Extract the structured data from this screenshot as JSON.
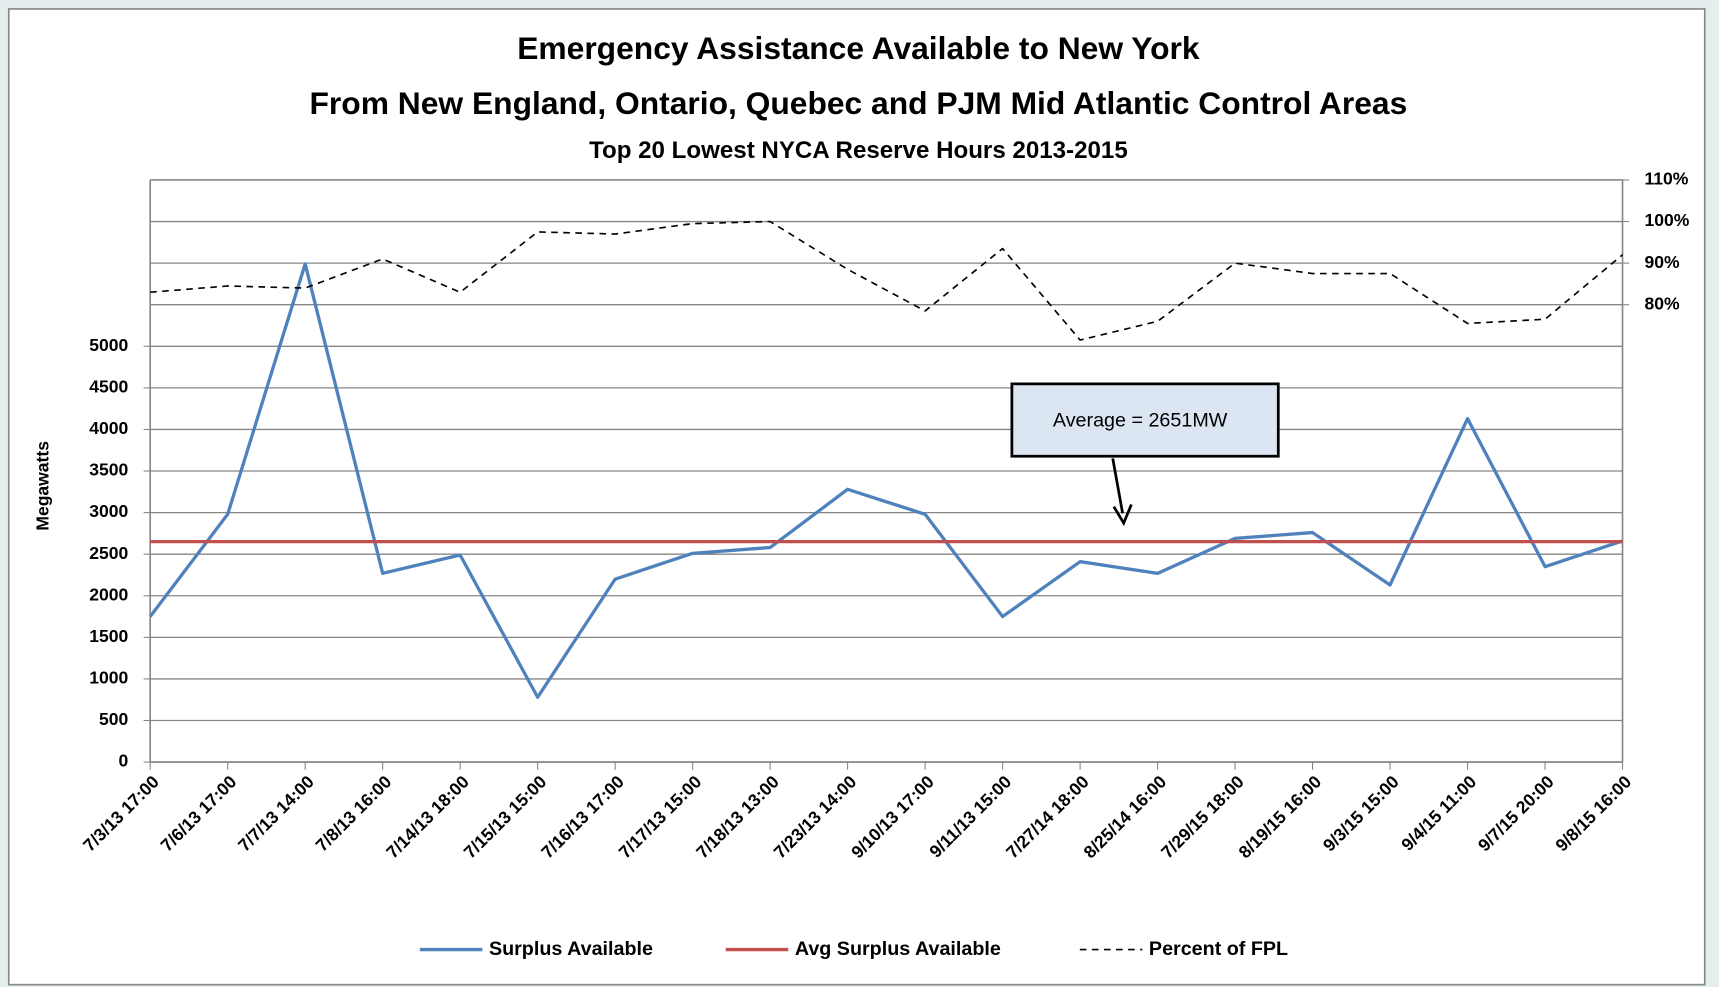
{
  "chart_data": {
    "type": "line",
    "title": [
      "Emergency Assistance Available to New York",
      "From New England, Ontario, Quebec and PJM Mid Atlantic Control Areas"
    ],
    "subtitle": "Top 20 Lowest NYCA Reserve Hours 2013-2015",
    "y_label": "Megawatts",
    "categories": [
      "7/3/13 17:00",
      "7/6/13 17:00",
      "7/7/13 14:00",
      "7/8/13 16:00",
      "7/14/13 18:00",
      "7/15/13 15:00",
      "7/16/13 17:00",
      "7/17/13 15:00",
      "7/18/13 13:00",
      "7/23/13 14:00",
      "9/10/13 17:00",
      "9/11/13 15:00",
      "7/27/14 18:00",
      "8/25/14 16:00",
      "7/29/15 18:00",
      "8/19/15 16:00",
      "9/3/15 15:00",
      "9/4/15 11:00",
      "9/7/15 20:00",
      "9/8/15 16:00"
    ],
    "series": [
      {
        "name": "Surplus Available",
        "color": "#4f81bd",
        "line_style": "solid",
        "values": [
          1750,
          2980,
          5990,
          2270,
          2490,
          780,
          2200,
          2510,
          2580,
          3280,
          2980,
          1750,
          2410,
          2270,
          2690,
          2760,
          2130,
          4130,
          2350,
          2660
        ]
      },
      {
        "name": "Avg Surplus Available",
        "color": "#c0504d",
        "line_style": "solid",
        "values": [
          2651,
          2651,
          2651,
          2651,
          2651,
          2651,
          2651,
          2651,
          2651,
          2651,
          2651,
          2651,
          2651,
          2651,
          2651,
          2651,
          2651,
          2651,
          2651,
          2651
        ]
      },
      {
        "name": "Percent of FPL",
        "color": "#000000",
        "line_style": "dashed",
        "axis": "y2",
        "values": [
          83,
          84.5,
          84,
          91,
          83,
          97.5,
          97,
          99.5,
          100,
          88.5,
          78.5,
          93.5,
          71.5,
          76,
          90,
          87.5,
          87.5,
          75.5,
          76.5,
          92
        ]
      }
    ],
    "ylim": [
      0,
      7000
    ],
    "yticks": [
      0,
      500,
      1000,
      1500,
      2000,
      2500,
      3000,
      3500,
      4000,
      4500,
      5000
    ],
    "y2lim": [
      -30,
      110
    ],
    "y2ticks": [
      {
        "value": 80,
        "label": "80%"
      },
      {
        "value": 90,
        "label": "90%"
      },
      {
        "value": 100,
        "label": "100%"
      },
      {
        "value": 110,
        "label": "110%"
      }
    ],
    "grid": true,
    "legend": "bottom",
    "annotations": [
      {
        "text": "Average = 2651MW"
      }
    ]
  }
}
